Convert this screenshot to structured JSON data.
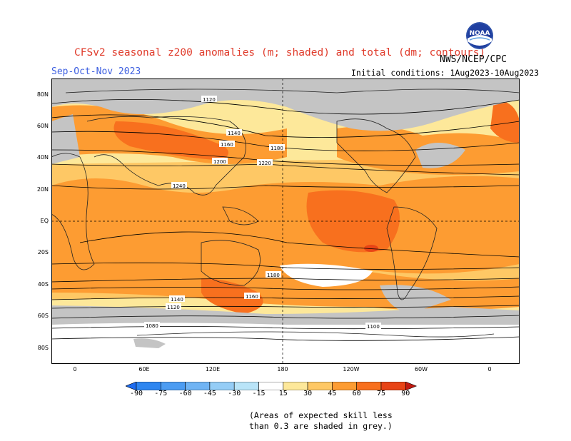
{
  "title": "CFSv2 seasonal z200 anomalies (m; shaded) and total (dm; contours)",
  "season": "Sep-Oct-Nov 2023",
  "initial_conditions": "Initial conditions: 1Aug2023-10Aug2023",
  "agency": "NWS/NCEP/CPC",
  "logo_text": "NOAA",
  "skill_note": {
    "line1": "(Areas of expected skill less",
    "line2": "than 0.3 are shaded in grey.)"
  },
  "lat_ticks": [
    "80N",
    "60N",
    "40N",
    "20N",
    "EQ",
    "20S",
    "40S",
    "60S",
    "80S"
  ],
  "lon_ticks": [
    "0",
    "60E",
    "120E",
    "180",
    "120W",
    "60W",
    "0"
  ],
  "colorbar": {
    "labels": [
      "-90",
      "-75",
      "-60",
      "-45",
      "-30",
      "-15",
      "15",
      "30",
      "45",
      "60",
      "75",
      "90"
    ],
    "colors": [
      "#1e6cf0",
      "#2e86f0",
      "#4c9cf2",
      "#70b4f4",
      "#95cdf6",
      "#b9e4f8",
      "#ffffff",
      "#fde89a",
      "#fec865",
      "#fd9c32",
      "#f8701e",
      "#e84416",
      "#c21a10"
    ]
  },
  "colors": {
    "grey_low_skill": "#c4c4c4",
    "title": "#e03c2c",
    "season": "#3d5fe0"
  },
  "contour_labels": [
    "1120",
    "1140",
    "1160",
    "1180",
    "1200",
    "1220",
    "1240",
    "1180",
    "1160",
    "1140",
    "1120",
    "1100",
    "1080"
  ]
}
